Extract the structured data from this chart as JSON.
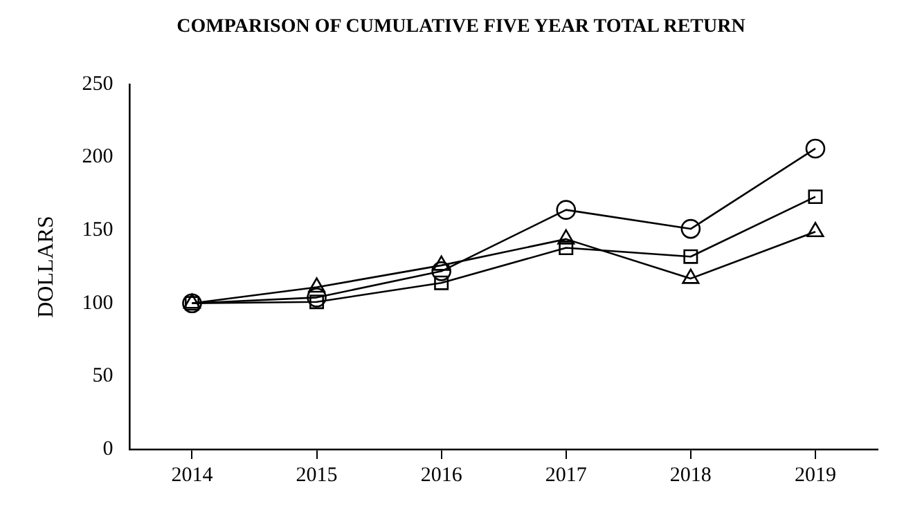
{
  "chart_data": {
    "type": "line",
    "title": "COMPARISON OF CUMULATIVE FIVE YEAR TOTAL RETURN",
    "ylabel": "DOLLARS",
    "categories": [
      "2014",
      "2015",
      "2016",
      "2017",
      "2018",
      "2019"
    ],
    "series": [
      {
        "color": "#000000",
        "marker": "circle",
        "values": [
          100,
          104,
          122,
          164,
          151,
          206
        ]
      },
      {
        "color": "#000000",
        "marker": "square",
        "values": [
          100,
          101,
          114,
          138,
          132,
          173
        ]
      },
      {
        "color": "#000000",
        "marker": "triangle",
        "values": [
          100,
          111,
          126,
          144,
          117,
          149
        ]
      }
    ],
    "ylim": [
      0,
      250
    ],
    "yticks": [
      0,
      50,
      100,
      150,
      200,
      250
    ],
    "grid": false,
    "legend": false,
    "line_style": "solid"
  }
}
